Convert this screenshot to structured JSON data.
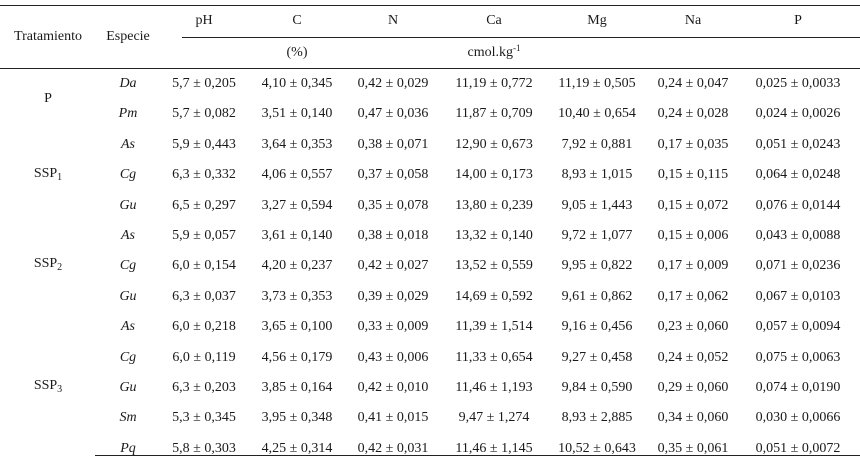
{
  "headers": {
    "tratamiento": "Tratamiento",
    "especie": "Especie",
    "cols": [
      "pH",
      "C",
      "N",
      "Ca",
      "Mg",
      "Na",
      "P"
    ],
    "unit_pct": "(%)",
    "unit_cmol": "cmol.kg",
    "unit_cmol_exp": "-1"
  },
  "treatments": [
    {
      "base": "P",
      "sub": ""
    },
    {
      "base": "SSP",
      "sub": "1"
    },
    {
      "base": "SSP",
      "sub": "2"
    },
    {
      "base": "SSP",
      "sub": "3"
    }
  ],
  "rows": [
    {
      "esp": "Da",
      "v": [
        "5,7 ± 0,205",
        "4,10 ± 0,345",
        "0,42 ± 0,029",
        "11,19 ± 0,772",
        "11,19 ± 0,505",
        "0,24 ± 0,047",
        "0,025 ± 0,0033"
      ]
    },
    {
      "esp": "Pm",
      "v": [
        "5,7 ± 0,082",
        "3,51 ± 0,140",
        "0,47 ± 0,036",
        "11,87 ± 0,709",
        "10,40 ± 0,654",
        "0,24 ± 0,028",
        "0,024 ± 0,0026"
      ]
    },
    {
      "esp": "As",
      "v": [
        "5,9 ± 0,443",
        "3,64 ± 0,353",
        "0,38 ± 0,071",
        "12,90 ± 0,673",
        "7,92 ± 0,881",
        "0,17 ± 0,035",
        "0,051 ± 0,0243"
      ]
    },
    {
      "esp": "Cg",
      "v": [
        "6,3 ± 0,332",
        "4,06 ± 0,557",
        "0,37 ± 0,058",
        "14,00 ± 0,173",
        "8,93 ± 1,015",
        "0,15 ± 0,115",
        "0,064 ± 0,0248"
      ]
    },
    {
      "esp": "Gu",
      "v": [
        "6,5 ± 0,297",
        "3,27 ± 0,594",
        "0,35 ± 0,078",
        "13,80 ± 0,239",
        "9,05 ± 1,443",
        "0,15 ± 0,072",
        "0,076 ± 0,0144"
      ]
    },
    {
      "esp": "As",
      "v": [
        "5,9 ± 0,057",
        "3,61 ± 0,140",
        "0,38 ± 0,018",
        "13,32 ± 0,140",
        "9,72 ± 1,077",
        "0,15 ± 0,006",
        "0,043 ± 0,0088"
      ]
    },
    {
      "esp": "Cg",
      "v": [
        "6,0 ± 0,154",
        "4,20 ± 0,237",
        "0,42 ± 0,027",
        "13,52 ± 0,559",
        "9,95 ± 0,822",
        "0,17 ± 0,009",
        "0,071 ± 0,0236"
      ]
    },
    {
      "esp": "Gu",
      "v": [
        "6,3 ± 0,037",
        "3,73 ± 0,353",
        "0,39 ± 0,029",
        "14,69 ± 0,592",
        "9,61 ± 0,862",
        "0,17 ± 0,062",
        "0,067 ± 0,0103"
      ]
    },
    {
      "esp": "As",
      "v": [
        "6,0 ± 0,218",
        "3,65 ± 0,100",
        "0,33 ± 0,009",
        "11,39 ± 1,514",
        "9,16 ± 0,456",
        "0,23 ± 0,060",
        "0,057 ± 0,0094"
      ]
    },
    {
      "esp": "Cg",
      "v": [
        "6,0 ± 0,119",
        "4,56 ± 0,179",
        "0,43 ± 0,006",
        "11,33 ± 0,654",
        "9,27 ± 0,458",
        "0,24 ± 0,052",
        "0,075 ± 0,0063"
      ]
    },
    {
      "esp": "Gu",
      "v": [
        "6,3 ± 0,203",
        "3,85 ± 0,164",
        "0,42 ± 0,010",
        "11,46 ± 1,193",
        "9,84 ± 0,590",
        "0,29 ± 0,060",
        "0,074 ± 0,0190"
      ]
    },
    {
      "esp": "Sm",
      "v": [
        "5,3 ± 0,345",
        "3,95 ± 0,348",
        "0,41 ± 0,015",
        "9,47 ± 1,274",
        "8,93 ± 2,885",
        "0,34 ± 0,060",
        "0,030 ± 0,0066"
      ]
    },
    {
      "esp": "Pq",
      "v": [
        "5,8 ± 0,303",
        "4,25 ± 0,314",
        "0,42 ± 0,031",
        "11,46 ± 1,145",
        "10,52 ± 0,643",
        "0,35 ± 0,061",
        "0,051 ± 0,0072"
      ]
    }
  ]
}
